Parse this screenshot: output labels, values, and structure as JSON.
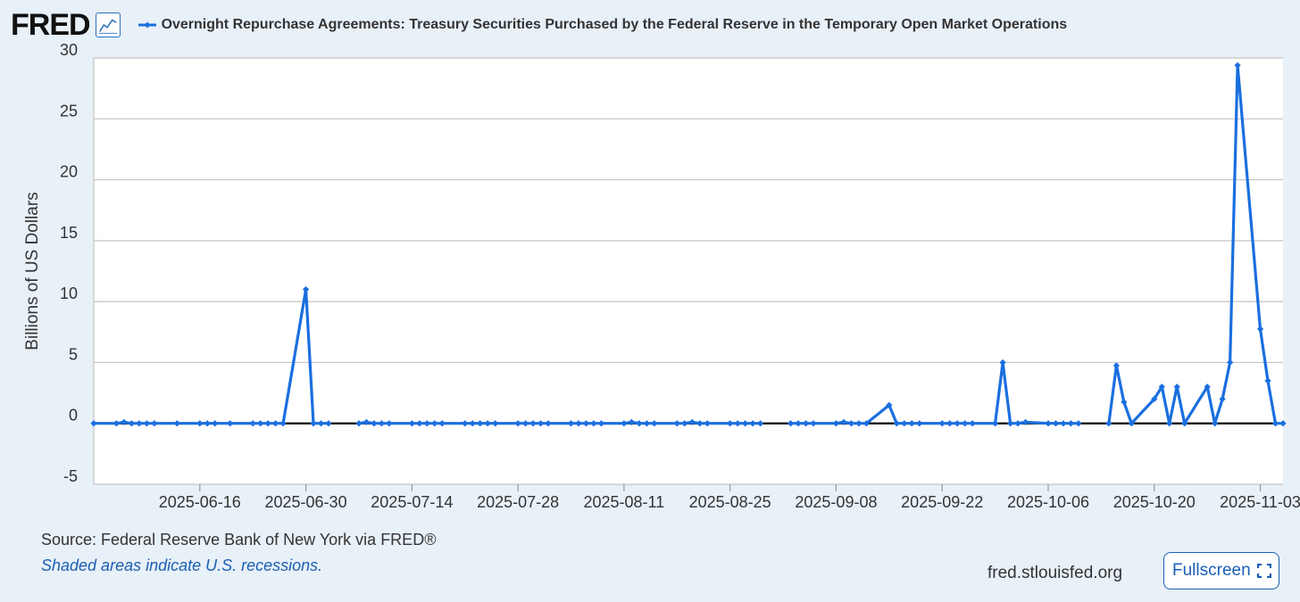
{
  "header": {
    "logo_text": "FRED",
    "logo_icon": "line-chart-icon",
    "title": "Overnight Repurchase Agreements: Treasury Securities Purchased by the Federal Reserve in the Temporary Open Market Operations"
  },
  "footer": {
    "source": "Source: Federal Reserve Bank of New York via FRED®",
    "recessions_note": "Shaded areas indicate U.S. recessions.",
    "site": "fred.stlouisfed.org",
    "fullscreen_label": "Fullscreen",
    "fullscreen_icon": "fullscreen-icon"
  },
  "colors": {
    "series": "#1a6fdf",
    "background": "#e8f0f8",
    "accent": "#1a5fb4"
  },
  "chart_data": {
    "type": "line",
    "title": "Overnight Repurchase Agreements: Treasury Securities Purchased by the Federal Reserve in the Temporary Open Market Operations",
    "xlabel": "",
    "ylabel": "Billions of US Dollars",
    "ylim": [
      -5,
      30
    ],
    "yticks": [
      -5,
      0,
      5,
      10,
      15,
      20,
      25,
      30
    ],
    "xlim": [
      "2025-06-02",
      "2025-11-06"
    ],
    "xticks": [
      "2025-06-16",
      "2025-06-30",
      "2025-07-14",
      "2025-07-28",
      "2025-08-11",
      "2025-08-25",
      "2025-09-08",
      "2025-09-22",
      "2025-10-06",
      "2025-10-20",
      "2025-11-03"
    ],
    "grid": true,
    "zero_line": true,
    "series": [
      {
        "name": "Overnight Repurchase Agreements: Treasury Securities Purchased by the Federal Reserve in the Temporary Open Market Operations",
        "color": "#1a6fdf",
        "segments": [
          {
            "x": [
              "2025-06-02",
              "2025-06-05",
              "2025-06-06",
              "2025-06-07",
              "2025-06-08",
              "2025-06-09",
              "2025-06-10",
              "2025-06-13",
              "2025-06-16",
              "2025-06-17",
              "2025-06-18",
              "2025-06-20",
              "2025-06-23",
              "2025-06-24",
              "2025-06-25",
              "2025-06-26",
              "2025-06-27",
              "2025-06-30",
              "2025-07-01",
              "2025-07-02",
              "2025-07-03"
            ],
            "y": [
              0,
              0,
              0.1,
              0,
              0,
              0,
              0,
              0,
              0,
              0,
              0,
              0,
              0,
              0,
              0,
              0,
              0,
              11,
              0,
              0,
              0
            ]
          },
          {
            "x": [
              "2025-07-07",
              "2025-07-08",
              "2025-07-09",
              "2025-07-10",
              "2025-07-11",
              "2025-07-14",
              "2025-07-15",
              "2025-07-16",
              "2025-07-17",
              "2025-07-18",
              "2025-07-21",
              "2025-07-22",
              "2025-07-23",
              "2025-07-24",
              "2025-07-25",
              "2025-07-28",
              "2025-07-29",
              "2025-07-30",
              "2025-07-31",
              "2025-08-01",
              "2025-08-04",
              "2025-08-05",
              "2025-08-06",
              "2025-08-07",
              "2025-08-08",
              "2025-08-11",
              "2025-08-12",
              "2025-08-13",
              "2025-08-14",
              "2025-08-15",
              "2025-08-18",
              "2025-08-19",
              "2025-08-20",
              "2025-08-21",
              "2025-08-22",
              "2025-08-25",
              "2025-08-26",
              "2025-08-27",
              "2025-08-28",
              "2025-08-29"
            ],
            "y": [
              0,
              0.1,
              0,
              0,
              0,
              0,
              0,
              0,
              0,
              0,
              0,
              0,
              0,
              0,
              0,
              0,
              0,
              0,
              0,
              0,
              0,
              0,
              0,
              0,
              0,
              0,
              0.1,
              0,
              0,
              0,
              0,
              0,
              0.1,
              0,
              0,
              0,
              0,
              0,
              0,
              0
            ]
          },
          {
            "x": [
              "2025-09-02",
              "2025-09-03",
              "2025-09-04",
              "2025-09-05",
              "2025-09-08",
              "2025-09-09",
              "2025-09-10",
              "2025-09-11",
              "2025-09-12",
              "2025-09-15",
              "2025-09-16",
              "2025-09-17",
              "2025-09-18",
              "2025-09-19",
              "2025-09-22",
              "2025-09-23",
              "2025-09-24",
              "2025-09-25",
              "2025-09-26",
              "2025-09-29",
              "2025-09-30",
              "2025-10-01",
              "2025-10-02",
              "2025-10-03",
              "2025-10-06",
              "2025-10-07",
              "2025-10-08",
              "2025-10-09",
              "2025-10-10"
            ],
            "y": [
              0,
              0,
              0,
              0,
              0,
              0.1,
              0,
              0,
              0,
              1.5,
              0,
              0,
              0,
              0,
              0,
              0,
              0,
              0,
              0,
              0,
              5,
              0,
              0,
              0.1,
              0,
              0,
              0,
              0,
              0
            ]
          },
          {
            "x": [
              "2025-10-14",
              "2025-10-15",
              "2025-10-16",
              "2025-10-17",
              "2025-10-20",
              "2025-10-21",
              "2025-10-22",
              "2025-10-23",
              "2025-10-24",
              "2025-10-27",
              "2025-10-28",
              "2025-10-29",
              "2025-10-30",
              "2025-10-31",
              "2025-11-03",
              "2025-11-04",
              "2025-11-05",
              "2025-11-06"
            ],
            "y": [
              0,
              4.75,
              1.75,
              0,
              2,
              3,
              0,
              3,
              0,
              3,
              0,
              2,
              5,
              29.4,
              7.75,
              3.5,
              0,
              0
            ]
          }
        ]
      }
    ]
  }
}
